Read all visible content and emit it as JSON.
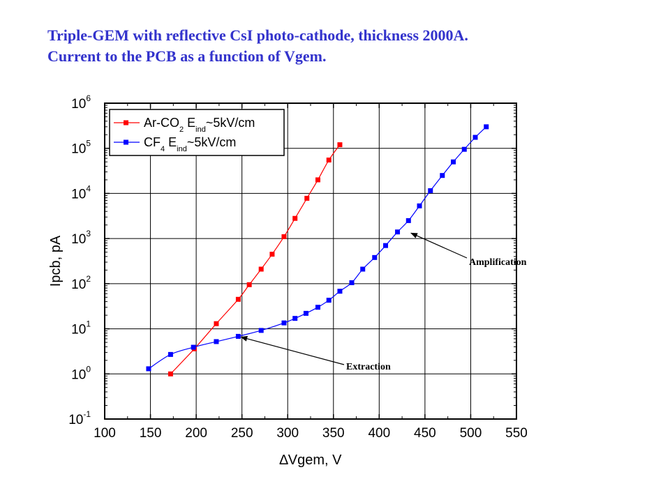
{
  "title": {
    "line1": "Triple-GEM with reflective CsI photo-cathode, thickness 2000A.",
    "line2": "Current to the PCB as a function of Vgem."
  },
  "chart_data": {
    "type": "line",
    "xlabel": "∆Vgem, V",
    "ylabel": "Ipcb, pA",
    "xlim": [
      100,
      550
    ],
    "ylim": [
      0.1,
      1000000
    ],
    "yscale": "log",
    "grid": true,
    "x_ticks": [
      "100",
      "150",
      "200",
      "250",
      "300",
      "350",
      "400",
      "450",
      "500",
      "550"
    ],
    "y_ticks": [
      {
        "base": "10",
        "exp": "-1"
      },
      {
        "base": "10",
        "exp": "0"
      },
      {
        "base": "10",
        "exp": "1"
      },
      {
        "base": "10",
        "exp": "2"
      },
      {
        "base": "10",
        "exp": "3"
      },
      {
        "base": "10",
        "exp": "4"
      },
      {
        "base": "10",
        "exp": "5"
      },
      {
        "base": "10",
        "exp": "6"
      }
    ],
    "legend_position": "top-left",
    "series": [
      {
        "name": "Ar-CO2 Eind~5kV/cm",
        "legend": {
          "a": "Ar-CO",
          "a_sub": "2",
          "b": " E",
          "b_sub": "ind",
          "c": "~5kV/cm"
        },
        "color": "#ff0000",
        "x": [
          172,
          198,
          222,
          246,
          258,
          271,
          283,
          296,
          308,
          321,
          333,
          345,
          357
        ],
        "y": [
          1.0,
          3.6,
          13,
          45,
          95,
          210,
          450,
          1100,
          2800,
          7800,
          20000,
          55000,
          120000
        ]
      },
      {
        "name": "CF4 Eind~5kV/cm",
        "legend": {
          "a": "CF",
          "a_sub": "4",
          "b": " E",
          "b_sub": "ind",
          "c": "~5kV/cm"
        },
        "color": "#0000ff",
        "x": [
          148,
          172,
          197,
          222,
          246,
          271,
          296,
          308,
          320,
          333,
          345,
          357,
          370,
          382,
          395,
          407,
          420,
          432,
          444,
          456,
          469,
          481,
          493,
          505,
          517
        ],
        "y": [
          1.3,
          2.7,
          3.9,
          5.2,
          6.8,
          9.2,
          13.5,
          17,
          22,
          30,
          43,
          68,
          105,
          210,
          380,
          700,
          1400,
          2500,
          5300,
          11500,
          25000,
          50000,
          95000,
          175000,
          300000
        ]
      }
    ],
    "annotations": [
      {
        "text": "Amplification",
        "arrow_to": {
          "x": 432,
          "y": 1400
        }
      },
      {
        "text": "Extraction",
        "arrow_to": {
          "x": 246,
          "y": 6.8
        }
      }
    ]
  }
}
